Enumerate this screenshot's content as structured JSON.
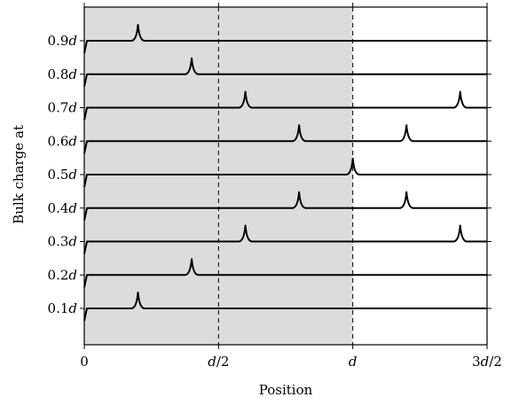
{
  "chart_data": {
    "type": "line",
    "xlabel": "Position",
    "ylabel": "Bulk charge at",
    "xlim": [
      0,
      1.5
    ],
    "x_unit": "d",
    "x_ticks": [
      {
        "value": 0,
        "label": "0"
      },
      {
        "value": 0.5,
        "label": "d/2"
      },
      {
        "value": 1.0,
        "label": "d"
      },
      {
        "value": 1.5,
        "label": "3d/2"
      }
    ],
    "shaded_region": {
      "x_from": 0,
      "x_to": 1.0,
      "color": "#dcdcdc"
    },
    "vertical_dashed_lines": [
      0.5,
      1.0
    ],
    "grid": false,
    "series": [
      {
        "label": "0.1d",
        "peaks": [
          0.2
        ]
      },
      {
        "label": "0.2d",
        "peaks": [
          0.4
        ]
      },
      {
        "label": "0.3d",
        "peaks": [
          0.6,
          1.4
        ]
      },
      {
        "label": "0.4d",
        "peaks": [
          0.8,
          1.2
        ]
      },
      {
        "label": "0.5d",
        "peaks": [
          1.0
        ]
      },
      {
        "label": "0.6d",
        "peaks": [
          0.8,
          1.2
        ]
      },
      {
        "label": "0.7d",
        "peaks": [
          0.6,
          1.4
        ]
      },
      {
        "label": "0.8d",
        "peaks": [
          0.4
        ]
      },
      {
        "label": "0.9d",
        "peaks": [
          0.2
        ]
      }
    ]
  }
}
